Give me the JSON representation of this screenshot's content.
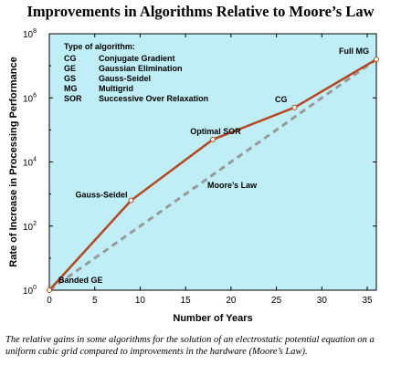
{
  "chart_data": {
    "type": "line",
    "title": "Improvements in Algorithms Relative to Moore’s Law",
    "xlabel": "Number of Years",
    "ylabel": "Rate of Increase in Processing Performance",
    "xlim": [
      0,
      36
    ],
    "ylim_log10": [
      0,
      8
    ],
    "y_scale": "log",
    "grid": false,
    "background": "#bfeef6",
    "colors": {
      "algorithms": "#b8461f",
      "moores_law": "#999999"
    },
    "x_ticks": [
      "0",
      "5",
      "10",
      "15",
      "20",
      "25",
      "30",
      "35"
    ],
    "y_ticks": [
      {
        "base": "10",
        "exp": "0"
      },
      {
        "base": "10",
        "exp": "2"
      },
      {
        "base": "10",
        "exp": "4"
      },
      {
        "base": "10",
        "exp": "6"
      },
      {
        "base": "10",
        "exp": "8"
      }
    ],
    "series": [
      {
        "name": "",
        "style": "solid",
        "points": [
          {
            "x": 0,
            "log10_y": 0,
            "label": "Banded GE"
          },
          {
            "x": 9,
            "log10_y": 2.8,
            "label": "Gauss-Seidel"
          },
          {
            "x": 18,
            "log10_y": 4.7,
            "label": "Optimal SOR"
          },
          {
            "x": 27,
            "log10_y": 5.7,
            "label": "CG"
          },
          {
            "x": 36,
            "log10_y": 7.2,
            "label": "Full MG"
          }
        ]
      },
      {
        "name": "Moore’s Law",
        "style": "dashed",
        "points": [
          {
            "x": 0,
            "log10_y": 0
          },
          {
            "x": 36,
            "log10_y": 7.2
          }
        ]
      }
    ],
    "annotations": {
      "moores_law": "Moore’s Law"
    },
    "legend": {
      "placement": "top-left",
      "title": "Type of algorithm:",
      "entries": [
        {
          "abbr": "CG",
          "name": "Conjugate Gradient"
        },
        {
          "abbr": "GE",
          "name": "Gaussian Elimination"
        },
        {
          "abbr": "GS",
          "name": "Gauss-Seidel"
        },
        {
          "abbr": "MG",
          "name": "Multigrid"
        },
        {
          "abbr": "SOR",
          "name": "Successive Over Relaxation"
        }
      ]
    }
  },
  "caption": "The relative gains in some algorithms for the solution of an electrostatic potential equation on a uniform cubic grid compared to improvements in the hardware (Moore’s Law)."
}
